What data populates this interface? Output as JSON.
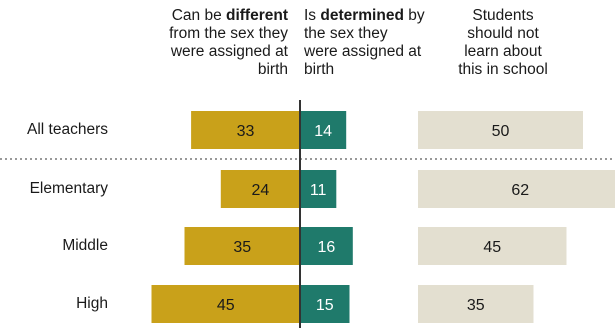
{
  "headers": {
    "different_pre": "Can be ",
    "different_bold": "different",
    "different_post": "\nfrom the sex they\nwere assigned at\nbirth",
    "determined_pre": "Is ",
    "determined_bold": "determined",
    "determined_post": " by\nthe sex they\nwere assigned at\nbirth",
    "not_learn": "Students\nshould not\nlearn about\nthis in school"
  },
  "colors": {
    "different": "#c9a11a",
    "determined": "#1f7a6b",
    "not_learn": "#e3dfd0",
    "axis": "#333333",
    "divider": "#999999"
  },
  "chart_data": {
    "type": "bar",
    "categories": [
      "All teachers",
      "Elementary",
      "Middle",
      "High"
    ],
    "series": [
      {
        "values": [
          33,
          24,
          35,
          45
        ]
      },
      {
        "values": [
          14,
          11,
          16,
          15
        ]
      },
      {
        "values": [
          50,
          62,
          45,
          35
        ]
      }
    ]
  }
}
